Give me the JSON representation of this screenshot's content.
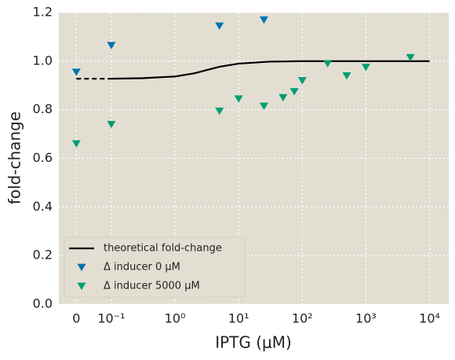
{
  "chart_data": {
    "type": "scatter",
    "xlabel": "IPTG (μM)",
    "ylabel": "fold-change",
    "xscale": "symlog",
    "linthresh": 0.1,
    "linscale": 0.55,
    "xlim": [
      -0.05,
      20000
    ],
    "ylim": [
      0,
      1.2
    ],
    "xticks": [
      {
        "value": 0,
        "label": "0"
      },
      {
        "value": 0.1,
        "label": "10⁻¹"
      },
      {
        "value": 1,
        "label": "10⁰"
      },
      {
        "value": 10,
        "label": "10¹"
      },
      {
        "value": 100,
        "label": "10²"
      },
      {
        "value": 1000,
        "label": "10³"
      },
      {
        "value": 10000,
        "label": "10⁴"
      }
    ],
    "yticks": [
      {
        "value": 0,
        "label": "0.0"
      },
      0.2,
      0.4,
      0.6,
      0.8,
      {
        "value": 1,
        "label": "1.0"
      },
      1.2
    ],
    "grid": true,
    "legend": "lower left",
    "series": [
      {
        "name": "theoretical fold-change",
        "type": "line",
        "color": "#000000",
        "x": [
          0,
          0.1,
          0.3,
          1,
          2,
          3,
          5,
          10,
          30,
          100,
          10000
        ],
        "values": [
          0.928,
          0.928,
          0.93,
          0.937,
          0.95,
          0.962,
          0.977,
          0.99,
          0.998,
          1.0,
          1.0
        ]
      },
      {
        "name": "Δ inducer 0 μM",
        "type": "scatter",
        "color": "#0072b2",
        "x": [
          0,
          0.1,
          5,
          25
        ],
        "values": [
          0.955,
          1.065,
          1.145,
          1.17
        ]
      },
      {
        "name": "Δ inducer 5000 μM",
        "type": "scatter",
        "color": "#009e73",
        "x": [
          0,
          0.1,
          5,
          10,
          25,
          50,
          75,
          100,
          250,
          500,
          1000,
          5000
        ],
        "values": [
          0.66,
          0.74,
          0.795,
          0.845,
          0.815,
          0.85,
          0.875,
          0.92,
          0.99,
          0.94,
          0.975,
          1.015
        ]
      }
    ]
  }
}
